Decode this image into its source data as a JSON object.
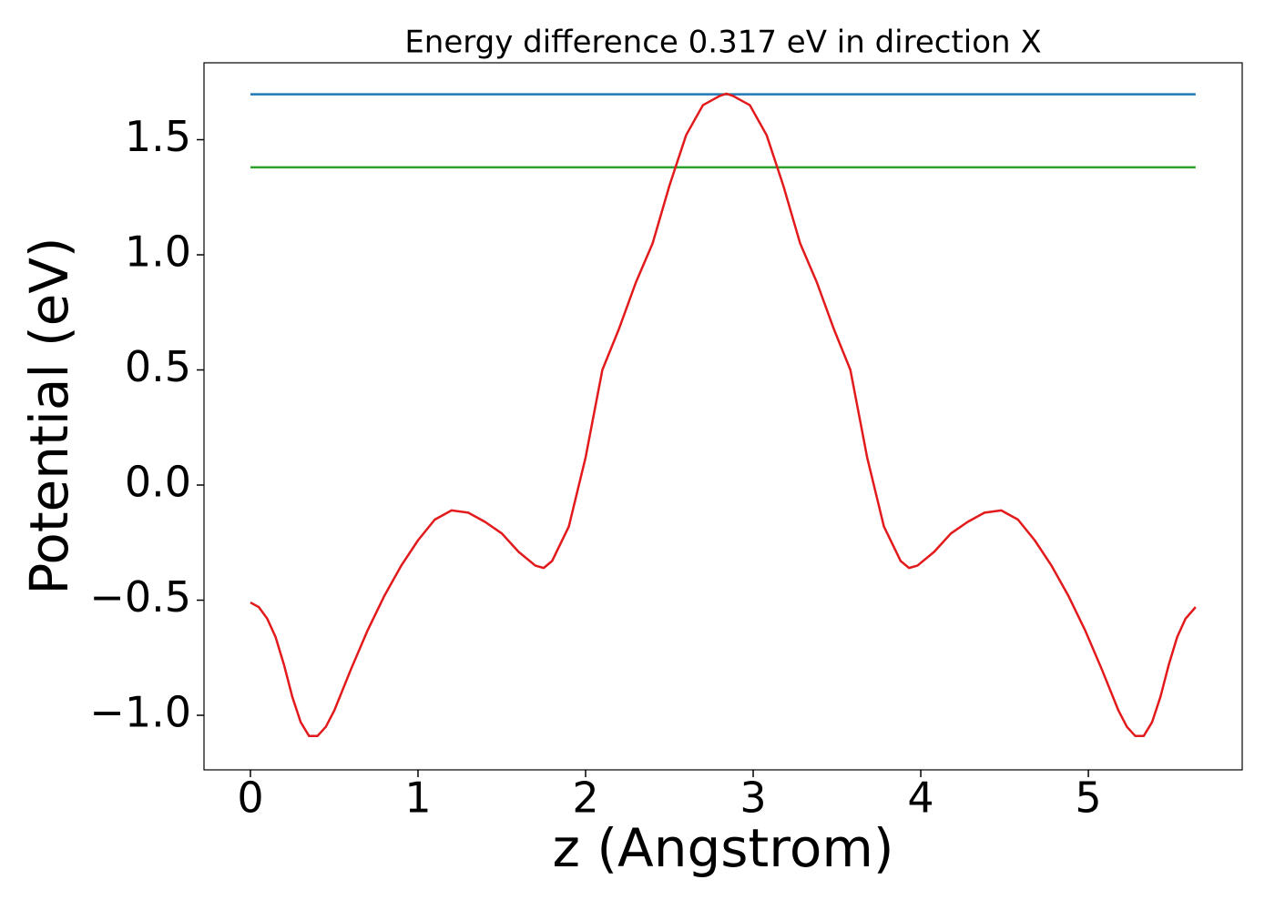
{
  "chart_data": {
    "type": "line",
    "title": "Energy difference 0.317 eV in direction X",
    "xlabel": "z (Angstrom)",
    "ylabel": "Potential (eV)",
    "xlim": [
      -0.277,
      5.918
    ],
    "ylim": [
      -1.237,
      1.834
    ],
    "xticks": [
      0,
      1,
      2,
      3,
      4,
      5
    ],
    "yticks": [
      {
        "value": -1.0,
        "label": "−1.0"
      },
      {
        "value": -0.5,
        "label": "−0.5"
      },
      {
        "value": 0.0,
        "label": "0.0"
      },
      0.5,
      {
        "value": 1.0,
        "label": "1.0"
      },
      1.5
    ],
    "grid": false,
    "series": [
      {
        "color": "#1f77b4",
        "x": [
          0,
          5.64
        ],
        "values": [
          1.697,
          1.697
        ]
      },
      {
        "color": "#2ca02c",
        "x": [
          0,
          5.64
        ],
        "values": [
          1.38,
          1.38
        ]
      },
      {
        "color": "#e31a1c",
        "x": [
          0,
          0.05,
          0.1,
          0.15,
          0.2,
          0.25,
          0.3,
          0.35,
          0.4,
          0.45,
          0.5,
          0.6,
          0.7,
          0.8,
          0.9,
          1.0,
          1.1,
          1.2,
          1.3,
          1.4,
          1.5,
          1.6,
          1.7,
          1.75,
          1.8,
          1.9,
          2.0,
          2.1,
          2.2,
          2.3,
          2.4,
          2.5,
          2.6,
          2.7,
          2.8,
          2.84,
          2.88,
          2.98,
          3.08,
          3.18,
          3.28,
          3.38,
          3.48,
          3.58,
          3.68,
          3.78,
          3.88,
          3.93,
          3.98,
          4.08,
          4.18,
          4.28,
          4.38,
          4.48,
          4.58,
          4.68,
          4.78,
          4.88,
          4.98,
          5.08,
          5.18,
          5.23,
          5.28,
          5.33,
          5.38,
          5.43,
          5.48,
          5.53,
          5.58,
          5.64
        ],
        "values": [
          -0.51,
          -0.53,
          -0.58,
          -0.66,
          -0.78,
          -0.92,
          -1.03,
          -1.09,
          -1.09,
          -1.05,
          -0.98,
          -0.8,
          -0.63,
          -0.48,
          -0.35,
          -0.24,
          -0.15,
          -0.11,
          -0.12,
          -0.16,
          -0.21,
          -0.29,
          -0.35,
          -0.36,
          -0.33,
          -0.18,
          0.12,
          0.5,
          0.68,
          0.88,
          1.05,
          1.3,
          1.52,
          1.65,
          1.69,
          1.7,
          1.69,
          1.65,
          1.52,
          1.3,
          1.05,
          0.88,
          0.68,
          0.5,
          0.12,
          -0.18,
          -0.33,
          -0.36,
          -0.35,
          -0.29,
          -0.21,
          -0.16,
          -0.12,
          -0.11,
          -0.15,
          -0.24,
          -0.35,
          -0.48,
          -0.63,
          -0.8,
          -0.98,
          -1.05,
          -1.09,
          -1.09,
          -1.03,
          -0.92,
          -0.78,
          -0.66,
          -0.58,
          -0.53
        ]
      }
    ]
  }
}
